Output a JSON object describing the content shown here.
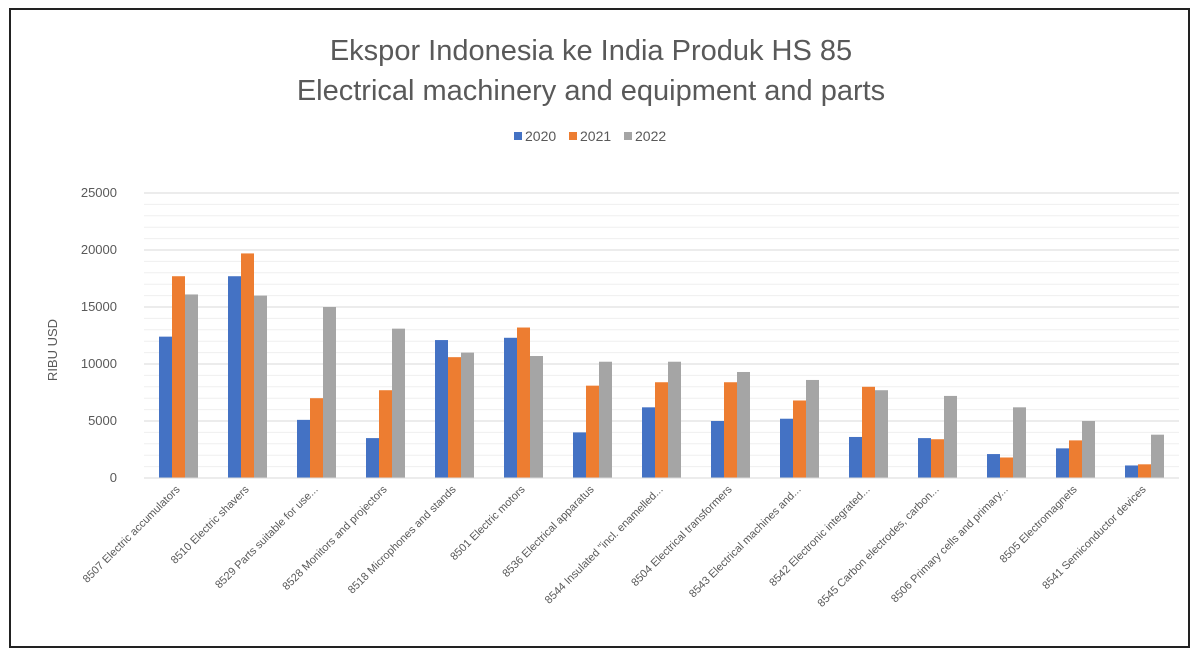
{
  "chart_data": {
    "type": "bar",
    "title": "Ekspor Indonesia ke India Produk HS 85",
    "subtitle": "Electrical machinery and equipment and parts",
    "ylabel": "RIBU USD",
    "xlabel": "",
    "ylim": [
      0,
      25000
    ],
    "yticks": [
      "0",
      "5000",
      "10000",
      "15000",
      "20000",
      "25000"
    ],
    "grid": true,
    "legend_position": "top",
    "categories": [
      "8507 Electric accumulators",
      "8510 Electric shavers",
      "8529 Parts suitable for use...",
      "8528 Monitors and projectors",
      "8518 Microphones and stands",
      "8501 Electric motors",
      "8536 Electrical apparatus",
      "8544 Insulated \"incl. enamelled...",
      "8504 Electrical transformers",
      "8543 Electrical machines and...",
      "8542 Electronic integrated...",
      "8545 Carbon electrodes, carbon...",
      "8506 Primary cells and primary...",
      "8505 Electromagnets",
      "8541 Semiconductor devices"
    ],
    "series": [
      {
        "name": "2020",
        "color": "#4472c4",
        "values": [
          12400,
          17700,
          5100,
          3500,
          12100,
          12300,
          4000,
          6200,
          5000,
          5200,
          3600,
          3500,
          2100,
          2600,
          1100
        ]
      },
      {
        "name": "2021",
        "color": "#ed7d31",
        "values": [
          17700,
          19700,
          7000,
          7700,
          10600,
          13200,
          8100,
          8400,
          8400,
          6800,
          8000,
          3400,
          1800,
          3300,
          1200
        ]
      },
      {
        "name": "2022",
        "color": "#a5a5a5",
        "values": [
          16100,
          16000,
          15000,
          13100,
          11000,
          10700,
          10200,
          10200,
          9300,
          8600,
          7700,
          7200,
          6200,
          5000,
          3800
        ]
      }
    ]
  }
}
